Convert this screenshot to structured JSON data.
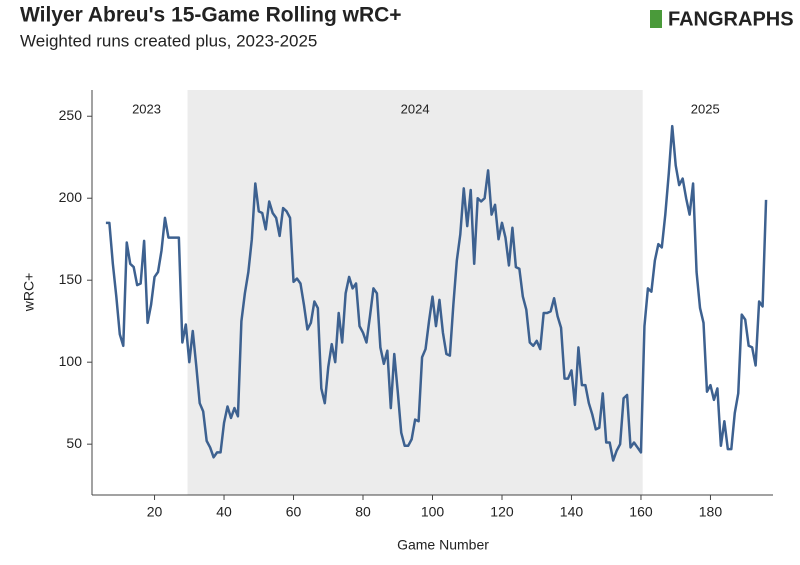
{
  "chart_data": {
    "type": "line",
    "title": "Wilyer Abreu's 15-Game Rolling wRC+",
    "subtitle": "Weighted runs created plus, 2023-2025",
    "logo": "FANGRAPHS",
    "x_label": "Game Number",
    "y_label": "wRC+",
    "xlim": [
      2,
      198
    ],
    "ylim": [
      19,
      266
    ],
    "xticks": [
      20,
      40,
      60,
      80,
      100,
      120,
      140,
      160,
      180
    ],
    "yticks": [
      50,
      100,
      150,
      200,
      250
    ],
    "shaded_xlim": [
      29.5,
      160.5
    ],
    "annotations": [
      {
        "text": "2023",
        "x": 17.7
      },
      {
        "text": "2024",
        "x": 95
      },
      {
        "text": "2025",
        "x": 178.5
      }
    ],
    "x": [
      6,
      7,
      8,
      9,
      10,
      11,
      12,
      13,
      14,
      15,
      16,
      17,
      18,
      19,
      20,
      21,
      22,
      23,
      24,
      25,
      26,
      27,
      28,
      29,
      30,
      31,
      32,
      33,
      34,
      35,
      36,
      37,
      38,
      39,
      40,
      41,
      42,
      43,
      44,
      45,
      46,
      47,
      48,
      49,
      50,
      51,
      52,
      53,
      54,
      55,
      56,
      57,
      58,
      59,
      60,
      61,
      62,
      63,
      64,
      65,
      66,
      67,
      68,
      69,
      70,
      71,
      72,
      73,
      74,
      75,
      76,
      77,
      78,
      79,
      80,
      81,
      82,
      83,
      84,
      85,
      86,
      87,
      88,
      89,
      90,
      91,
      92,
      93,
      94,
      95,
      96,
      97,
      98,
      99,
      100,
      101,
      102,
      103,
      104,
      105,
      106,
      107,
      108,
      109,
      110,
      111,
      112,
      113,
      114,
      115,
      116,
      117,
      118,
      119,
      120,
      121,
      122,
      123,
      124,
      125,
      126,
      127,
      128,
      129,
      130,
      131,
      132,
      133,
      134,
      135,
      136,
      137,
      138,
      139,
      140,
      141,
      142,
      143,
      144,
      145,
      146,
      147,
      148,
      149,
      150,
      151,
      152,
      153,
      154,
      155,
      156,
      157,
      158,
      159,
      160,
      161,
      162,
      163,
      164,
      165,
      166,
      167,
      168,
      169,
      170,
      171,
      172,
      173,
      174,
      175,
      176,
      177,
      178,
      179,
      180,
      181,
      182,
      183,
      184,
      185,
      186,
      187,
      188,
      189,
      190,
      191,
      192,
      193,
      194,
      195,
      196
    ],
    "series": [
      {
        "name": "wRC+",
        "color": "#3d6190",
        "values": [
          185,
          185,
          160,
          140,
          117,
          110,
          173,
          160,
          158,
          147,
          148,
          174,
          124,
          135,
          152,
          155,
          168,
          188,
          176,
          176,
          176,
          176,
          112,
          123,
          100,
          119,
          98,
          75,
          70,
          52,
          48,
          42,
          45,
          45,
          63,
          73,
          66,
          72,
          67,
          125,
          142,
          155,
          175,
          209,
          192,
          191,
          181,
          198,
          191,
          188,
          177,
          194,
          192,
          188,
          149,
          151,
          148,
          135,
          120,
          124,
          137,
          133,
          84,
          75,
          97,
          111,
          100,
          130,
          112,
          142,
          152,
          145,
          148,
          122,
          118,
          112,
          128,
          145,
          142,
          109,
          99,
          107,
          72,
          105,
          82,
          57,
          49,
          49,
          53,
          65,
          64,
          103,
          108,
          125,
          140,
          122,
          138,
          118,
          105,
          104,
          135,
          162,
          178,
          206,
          183,
          205,
          160,
          200,
          198,
          200,
          217,
          190,
          196,
          175,
          185,
          176,
          159,
          182,
          158,
          157,
          140,
          132,
          112,
          110,
          113,
          108,
          130,
          130,
          131,
          139,
          128,
          121,
          90,
          90,
          95,
          74,
          109,
          86,
          86,
          75,
          68,
          59,
          60,
          81,
          51,
          51,
          40,
          46,
          50,
          78,
          80,
          48,
          51,
          48,
          45,
          122,
          145,
          143,
          162,
          172,
          170,
          190,
          215,
          244,
          220,
          208,
          212,
          200,
          190,
          209,
          155,
          133,
          124,
          82,
          86,
          77,
          84,
          49,
          64,
          47,
          47,
          69,
          81,
          129,
          126,
          110,
          109,
          98,
          137,
          134,
          199
        ]
      }
    ]
  }
}
